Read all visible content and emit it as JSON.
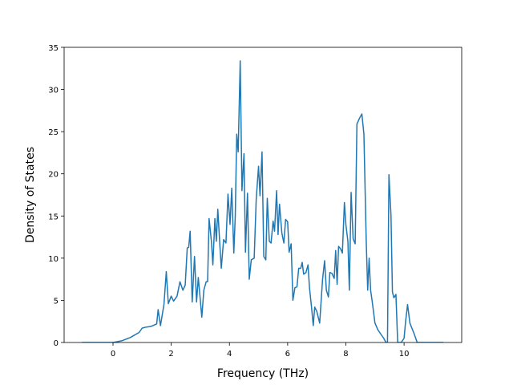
{
  "chart_data": {
    "type": "line",
    "xlabel": "Frequency (THz)",
    "ylabel": "Density of States",
    "color": "#1f77b4",
    "xlim": [
      -1.68,
      11.98
    ],
    "ylim": [
      0,
      35
    ],
    "xticks": [
      0,
      2,
      4,
      6,
      8,
      10
    ],
    "yticks": [
      0,
      5,
      10,
      15,
      20,
      25,
      30,
      35
    ],
    "x": [
      -1.07,
      0,
      0.3,
      0.6,
      0.9,
      1.0,
      1.1,
      1.3,
      1.5,
      1.55,
      1.63,
      1.75,
      1.83,
      1.9,
      2.0,
      2.08,
      2.2,
      2.3,
      2.4,
      2.48,
      2.55,
      2.6,
      2.65,
      2.72,
      2.8,
      2.87,
      2.93,
      3.0,
      3.05,
      3.12,
      3.2,
      3.25,
      3.3,
      3.38,
      3.43,
      3.5,
      3.55,
      3.6,
      3.68,
      3.72,
      3.8,
      3.88,
      3.95,
      4.02,
      4.08,
      4.15,
      4.2,
      4.25,
      4.3,
      4.37,
      4.43,
      4.5,
      4.55,
      4.62,
      4.68,
      4.75,
      4.85,
      4.92,
      5.0,
      5.05,
      5.12,
      5.18,
      5.25,
      5.3,
      5.37,
      5.43,
      5.5,
      5.55,
      5.62,
      5.67,
      5.72,
      5.8,
      5.87,
      5.93,
      6.0,
      6.05,
      6.12,
      6.18,
      6.25,
      6.32,
      6.38,
      6.45,
      6.5,
      6.55,
      6.63,
      6.7,
      6.75,
      6.82,
      6.88,
      6.93,
      7.0,
      7.1,
      7.2,
      7.27,
      7.33,
      7.4,
      7.45,
      7.52,
      7.6,
      7.65,
      7.7,
      7.75,
      7.82,
      7.88,
      7.95,
      8.0,
      8.07,
      8.12,
      8.18,
      8.25,
      8.32,
      8.38,
      8.47,
      8.55,
      8.62,
      8.7,
      8.75,
      8.8,
      8.85,
      8.9,
      9.0,
      9.1,
      9.2,
      9.3,
      9.38,
      9.43,
      9.48,
      9.55,
      9.6,
      9.65,
      9.72,
      9.78,
      9.9,
      10.0,
      10.05,
      10.12,
      10.2,
      10.35,
      10.45,
      10.6,
      11.35
    ],
    "values": [
      0,
      0,
      0.2,
      0.6,
      1.2,
      1.7,
      1.8,
      1.9,
      2.2,
      3.9,
      2.0,
      4.5,
      8.4,
      4.6,
      5.5,
      4.9,
      5.5,
      7.2,
      6.2,
      6.8,
      11.2,
      11.3,
      13.2,
      4.8,
      10.2,
      4.8,
      7.7,
      5.0,
      3.0,
      6.2,
      7.2,
      7.2,
      14.7,
      12.0,
      9.2,
      14.7,
      12.0,
      15.8,
      11.0,
      8.8,
      12.2,
      11.8,
      17.6,
      14.0,
      18.3,
      10.6,
      15.0,
      24.7,
      22.6,
      33.4,
      18.0,
      22.4,
      10.7,
      17.7,
      7.5,
      9.8,
      10.0,
      17.0,
      20.9,
      17.4,
      22.6,
      10.2,
      9.8,
      17.1,
      12.0,
      11.8,
      14.4,
      13.2,
      18.0,
      12.8,
      16.4,
      13.0,
      11.8,
      14.6,
      14.3,
      10.7,
      11.7,
      5.0,
      6.5,
      6.6,
      8.8,
      8.8,
      9.5,
      8.1,
      8.3,
      9.2,
      6.5,
      4.2,
      2.0,
      4.2,
      3.7,
      2.3,
      7.5,
      9.7,
      6.2,
      5.4,
      8.3,
      8.2,
      7.6,
      10.9,
      6.9,
      11.4,
      11.1,
      10.6,
      16.6,
      14.0,
      12.0,
      6.2,
      17.8,
      12.3,
      11.7,
      25.9,
      26.6,
      27.1,
      24.7,
      12.0,
      6.2,
      10.0,
      6.2,
      5.0,
      2.3,
      1.5,
      1.0,
      0.5,
      0,
      0,
      19.9,
      15.1,
      6.0,
      5.3,
      5.7,
      0,
      0,
      0.5,
      2.4,
      4.5,
      2.3,
      1.0,
      0,
      0,
      0
    ]
  }
}
